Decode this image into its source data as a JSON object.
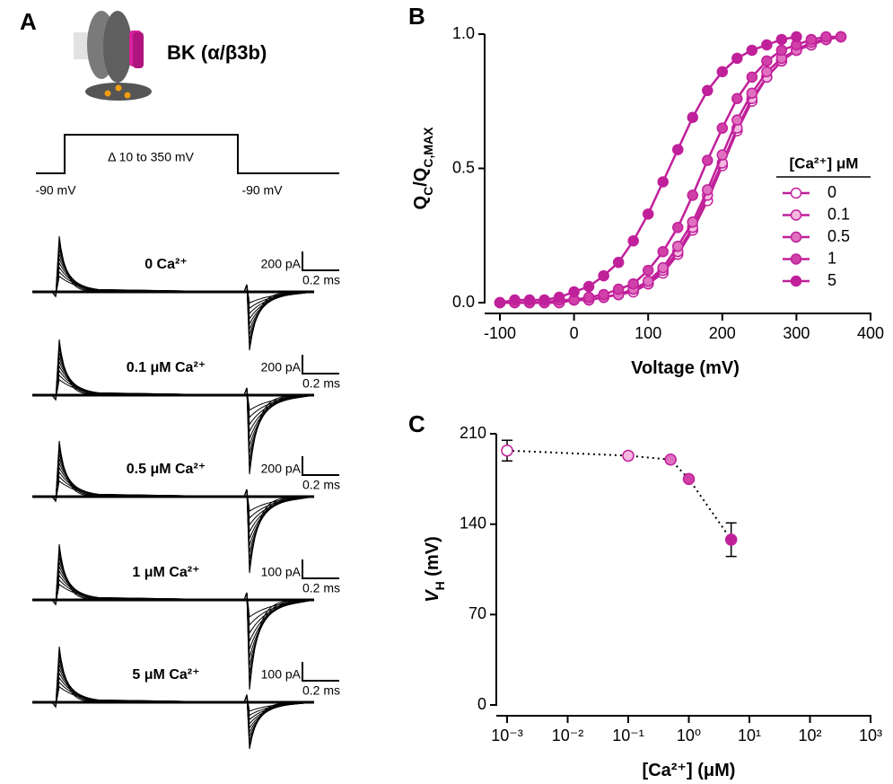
{
  "panel_a": {
    "label": "A",
    "channel": "BK (α/β3b)",
    "step": "Δ 10 to 350 mV",
    "holding": [
      "-90 mV",
      "-90 mV"
    ],
    "traces": [
      {
        "label": "0 Ca²⁺",
        "current_scale": "200 pA",
        "time_scale": "0.2 ms"
      },
      {
        "label": "0.1 μM Ca²⁺",
        "current_scale": "200 pA",
        "time_scale": "0.2 ms"
      },
      {
        "label": "0.5 μM Ca²⁺",
        "current_scale": "200 pA",
        "time_scale": "0.2 ms"
      },
      {
        "label": "1 μM Ca²⁺",
        "current_scale": "100 pA",
        "time_scale": "0.2 ms"
      },
      {
        "label": "5 μM Ca²⁺",
        "current_scale": "100 pA",
        "time_scale": "0.2 ms"
      }
    ]
  },
  "chart_data": [
    {
      "type": "line",
      "label": "B",
      "xlabel": [
        {
          "text": "Voltage (mV)"
        }
      ],
      "ylabel": [
        {
          "text": "Q"
        },
        {
          "text": "C",
          "sub": true
        },
        {
          "text": "/Q"
        },
        {
          "text": "C,MAX",
          "sub": true
        }
      ],
      "legend_title": "[Ca²⁺] μM",
      "legend": "right",
      "xlim": [
        -100,
        400
      ],
      "xticks": [
        -100,
        0,
        100,
        200,
        300,
        400
      ],
      "ylim": [
        0,
        1
      ],
      "yticks": [
        {
          "value": 0,
          "label": "0.0"
        },
        {
          "value": 0.5,
          "label": "0.5"
        },
        {
          "value": 1,
          "label": "1.0"
        }
      ],
      "stroke": "#c0209a",
      "x": [
        -100,
        -80,
        -60,
        -40,
        -20,
        0,
        20,
        40,
        60,
        80,
        100,
        120,
        140,
        160,
        180,
        200,
        220,
        240,
        260,
        280,
        300,
        320,
        340,
        360
      ],
      "series": [
        {
          "name": "0",
          "color": "#ffffff",
          "values": [
            0,
            0,
            0,
            0,
            0,
            0.01,
            0.01,
            0.02,
            0.03,
            0.04,
            0.07,
            0.11,
            0.18,
            0.27,
            0.38,
            0.51,
            0.64,
            0.75,
            0.84,
            0.9,
            0.94,
            0.96,
            0.98,
            0.99
          ]
        },
        {
          "name": "0.1",
          "color": "#f4b8e0",
          "values": [
            0,
            0,
            0,
            0,
            0,
            0.01,
            0.01,
            0.02,
            0.03,
            0.05,
            0.07,
            0.12,
            0.19,
            0.28,
            0.4,
            0.52,
            0.65,
            0.76,
            0.84,
            0.9,
            0.94,
            0.96,
            0.98,
            0.99
          ]
        },
        {
          "name": "0.5",
          "color": "#e070c0",
          "values": [
            0,
            0,
            0,
            0,
            0,
            0.01,
            0.01,
            0.02,
            0.03,
            0.05,
            0.08,
            0.13,
            0.21,
            0.3,
            0.42,
            0.55,
            0.68,
            0.78,
            0.86,
            0.91,
            0.94,
            0.97,
            0.98,
            0.99
          ]
        },
        {
          "name": "1",
          "color": "#d040a8",
          "values": [
            0,
            0,
            0,
            0,
            0.01,
            0.01,
            0.02,
            0.03,
            0.05,
            0.07,
            0.12,
            0.19,
            0.28,
            0.4,
            0.53,
            0.65,
            0.76,
            0.84,
            0.9,
            0.94,
            0.96,
            0.98,
            0.99,
            0.99
          ]
        },
        {
          "name": "5",
          "color": "#c0209a",
          "values": [
            0,
            0.01,
            0.01,
            0.01,
            0.02,
            0.04,
            0.06,
            0.1,
            0.15,
            0.23,
            0.33,
            0.45,
            0.57,
            0.69,
            0.79,
            0.86,
            0.91,
            0.94,
            0.96,
            0.98,
            0.99,
            null,
            null,
            null
          ]
        }
      ]
    },
    {
      "type": "scatter",
      "label": "C",
      "log_x": true,
      "line_style": "dotted",
      "xlabel": [
        {
          "text": "[Ca²⁺] (μM)"
        }
      ],
      "ylabel": [
        {
          "text": "V",
          "italic": true
        },
        {
          "text": "H",
          "sub": true
        },
        {
          "text": " (mV)"
        }
      ],
      "xlim": [
        0.001,
        1000
      ],
      "xticks": [
        {
          "value": 0.001,
          "label": "10⁻³"
        },
        {
          "value": 0.01,
          "label": "10⁻²"
        },
        {
          "value": 0.1,
          "label": "10⁻¹"
        },
        {
          "value": 1,
          "label": "10⁰"
        },
        {
          "value": 10,
          "label": "10¹"
        },
        {
          "value": 100,
          "label": "10²"
        },
        {
          "value": 1000,
          "label": "10³"
        }
      ],
      "ylim": [
        0,
        210
      ],
      "yticks": [
        0,
        70,
        140,
        210
      ],
      "stroke": "#c0209a",
      "x": [
        0.001,
        0.1,
        0.5,
        1,
        5
      ],
      "values": [
        197,
        193,
        190,
        175,
        128
      ],
      "errors": [
        8,
        null,
        null,
        null,
        13
      ],
      "colors": [
        "#ffffff",
        "#f4b8e0",
        "#e070c0",
        "#d040a8",
        "#c0209a"
      ]
    }
  ]
}
